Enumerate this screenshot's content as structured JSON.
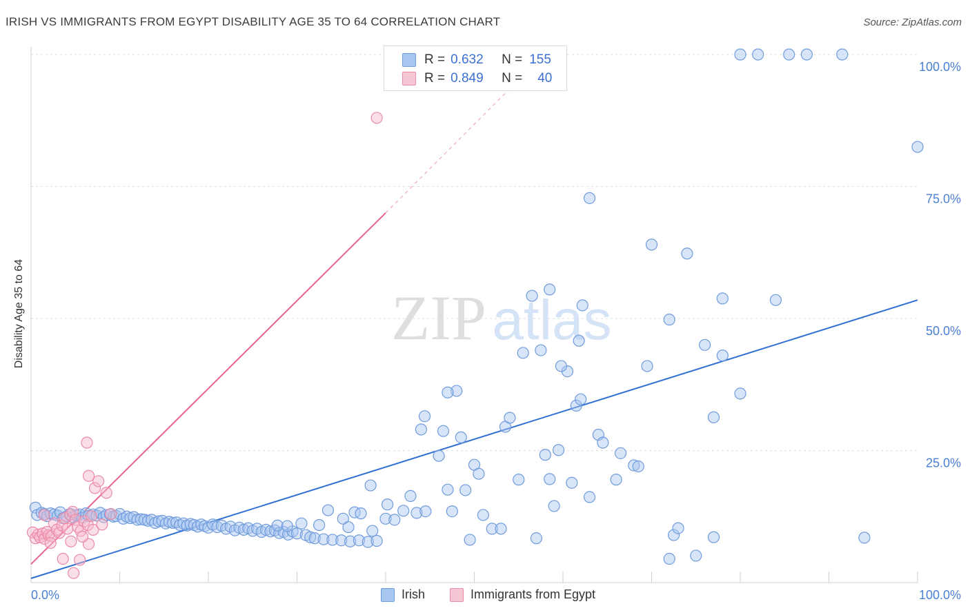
{
  "title": "IRISH VS IMMIGRANTS FROM EGYPT DISABILITY AGE 35 TO 64 CORRELATION CHART",
  "source": "Source: ZipAtlas.com",
  "watermark": {
    "zip": "ZIP",
    "atlas": "atlas"
  },
  "colors": {
    "irish_fill": "#a8c6f0",
    "irish_stroke": "#6f9bdc",
    "irish_line": "#2f6fd3",
    "egypt_fill": "#f6b9cb",
    "egypt_stroke": "#e98aa6",
    "egypt_line": "#e8648e",
    "axis_label": "#4a7fd4"
  },
  "legend": {
    "irish": {
      "r_label": "R =",
      "r_value": "0.632",
      "n_label": "N =",
      "n_value": "155"
    },
    "egypt": {
      "r_label": "R =",
      "r_value": "0.849",
      "n_label": "N =",
      "n_value": "40"
    }
  },
  "series_names": {
    "irish": "Irish",
    "egypt": "Immigrants from Egypt"
  },
  "chart_data": {
    "type": "scatter",
    "title": "IRISH VS IMMIGRANTS FROM EGYPT DISABILITY AGE 35 TO 64 CORRELATION CHART",
    "xlabel": "",
    "ylabel": "Disability Age 35 to 64",
    "xlim": [
      0,
      100
    ],
    "ylim": [
      0,
      100
    ],
    "x_tick_labels": [
      "0.0%",
      "100.0%"
    ],
    "y_tick_labels": [
      "25.0%",
      "50.0%",
      "75.0%",
      "100.0%"
    ],
    "y_gridlines": [
      25,
      50,
      75,
      100
    ],
    "series": [
      {
        "name": "Irish",
        "r": 0.632,
        "n": 155,
        "trend": {
          "x": [
            0,
            100
          ],
          "y": [
            0.8,
            53.5
          ]
        },
        "points": [
          [
            0.5,
            14.2
          ],
          [
            0.7,
            12.8
          ],
          [
            1.2,
            13.2
          ],
          [
            1.5,
            13.0
          ],
          [
            1.8,
            12.6
          ],
          [
            2.2,
            13.1
          ],
          [
            2.6,
            12.9
          ],
          [
            3.0,
            12.7
          ],
          [
            3.3,
            13.3
          ],
          [
            3.6,
            12.2
          ],
          [
            4.0,
            12.5
          ],
          [
            4.4,
            13.0
          ],
          [
            4.7,
            12.4
          ],
          [
            5.1,
            12.8
          ],
          [
            5.5,
            12.9
          ],
          [
            5.8,
            12.3
          ],
          [
            6.2,
            13.1
          ],
          [
            6.5,
            12.6
          ],
          [
            7.0,
            12.9
          ],
          [
            7.4,
            12.7
          ],
          [
            7.8,
            13.2
          ],
          [
            8.2,
            12.4
          ],
          [
            8.5,
            12.8
          ],
          [
            8.9,
            12.9
          ],
          [
            9.3,
            12.5
          ],
          [
            9.6,
            12.6
          ],
          [
            10.0,
            13.0
          ],
          [
            10.4,
            12.1
          ],
          [
            10.8,
            12.5
          ],
          [
            11.2,
            12.2
          ],
          [
            11.6,
            12.4
          ],
          [
            12.0,
            11.9
          ],
          [
            12.4,
            12.0
          ],
          [
            12.8,
            11.9
          ],
          [
            13.2,
            11.7
          ],
          [
            13.6,
            11.9
          ],
          [
            14.0,
            11.3
          ],
          [
            14.4,
            11.6
          ],
          [
            14.8,
            11.7
          ],
          [
            15.2,
            11.2
          ],
          [
            15.6,
            11.5
          ],
          [
            16.0,
            11.3
          ],
          [
            16.4,
            11.4
          ],
          [
            16.8,
            10.9
          ],
          [
            17.2,
            11.2
          ],
          [
            17.6,
            10.8
          ],
          [
            18.0,
            11.1
          ],
          [
            18.4,
            10.9
          ],
          [
            18.8,
            10.6
          ],
          [
            19.2,
            11.0
          ],
          [
            19.6,
            10.7
          ],
          [
            20.0,
            10.4
          ],
          [
            20.5,
            11.0
          ],
          [
            21.0,
            10.5
          ],
          [
            21.5,
            10.8
          ],
          [
            22.0,
            10.2
          ],
          [
            22.5,
            10.6
          ],
          [
            23.0,
            9.9
          ],
          [
            23.5,
            10.4
          ],
          [
            24.0,
            10.0
          ],
          [
            24.5,
            10.3
          ],
          [
            25.0,
            9.8
          ],
          [
            25.5,
            10.2
          ],
          [
            26.0,
            9.6
          ],
          [
            26.5,
            10.0
          ],
          [
            27.0,
            9.7
          ],
          [
            27.5,
            9.9
          ],
          [
            28.0,
            9.4
          ],
          [
            28.5,
            9.6
          ],
          [
            29.0,
            9.1
          ],
          [
            29.5,
            9.7
          ],
          [
            30.0,
            9.3
          ],
          [
            31.0,
            9.0
          ],
          [
            31.5,
            8.6
          ],
          [
            32.0,
            8.4
          ],
          [
            33.0,
            8.2
          ],
          [
            34.0,
            8.1
          ],
          [
            35.0,
            8.0
          ],
          [
            36.0,
            7.8
          ],
          [
            37.0,
            8.0
          ],
          [
            38.0,
            7.7
          ],
          [
            39.0,
            7.9
          ],
          [
            27.8,
            10.8
          ],
          [
            28.9,
            10.7
          ],
          [
            30.5,
            11.2
          ],
          [
            32.5,
            10.9
          ],
          [
            33.5,
            13.7
          ],
          [
            35.2,
            12.1
          ],
          [
            35.8,
            10.5
          ],
          [
            36.5,
            13.3
          ],
          [
            37.2,
            13.1
          ],
          [
            38.5,
            9.8
          ],
          [
            40.0,
            12.1
          ],
          [
            41.0,
            11.9
          ],
          [
            42.0,
            13.6
          ],
          [
            42.8,
            16.4
          ],
          [
            43.5,
            13.2
          ],
          [
            44.5,
            13.5
          ],
          [
            40.2,
            14.8
          ],
          [
            38.3,
            18.4
          ],
          [
            44.0,
            29.0
          ],
          [
            44.4,
            31.5
          ],
          [
            46.5,
            28.7
          ],
          [
            46.0,
            24.0
          ],
          [
            47.0,
            17.6
          ],
          [
            47.5,
            13.5
          ],
          [
            49.0,
            17.5
          ],
          [
            48.5,
            27.5
          ],
          [
            48.0,
            36.3
          ],
          [
            50.0,
            22.3
          ],
          [
            49.5,
            8.1
          ],
          [
            50.5,
            20.6
          ],
          [
            51.0,
            12.8
          ],
          [
            52.0,
            10.2
          ],
          [
            53.0,
            10.2
          ],
          [
            53.5,
            29.5
          ],
          [
            54.0,
            31.2
          ],
          [
            55.0,
            19.5
          ],
          [
            57.0,
            8.4
          ],
          [
            58.0,
            24.2
          ],
          [
            58.5,
            19.6
          ],
          [
            59.0,
            14.5
          ],
          [
            59.5,
            25.1
          ],
          [
            60.5,
            40.0
          ],
          [
            61.0,
            18.9
          ],
          [
            61.5,
            33.5
          ],
          [
            62.0,
            34.7
          ],
          [
            63.0,
            16.2
          ],
          [
            64.0,
            28.0
          ],
          [
            64.5,
            26.5
          ],
          [
            66.0,
            19.5
          ],
          [
            66.5,
            24.5
          ],
          [
            68.0,
            22.2
          ],
          [
            68.5,
            22.0
          ],
          [
            72.0,
            4.5
          ],
          [
            72.5,
            9.0
          ],
          [
            73.0,
            10.3
          ],
          [
            75.0,
            5.1
          ],
          [
            77.0,
            8.6
          ],
          [
            55.5,
            43.5
          ],
          [
            57.5,
            44.0
          ],
          [
            59.8,
            41.0
          ],
          [
            61.8,
            45.8
          ],
          [
            56.5,
            54.3
          ],
          [
            58.5,
            55.5
          ],
          [
            62.2,
            52.5
          ],
          [
            47.0,
            36.0
          ],
          [
            63.0,
            72.8
          ],
          [
            70.0,
            64.0
          ],
          [
            74.0,
            62.3
          ],
          [
            72.0,
            49.8
          ],
          [
            76.0,
            45.0
          ],
          [
            78.0,
            43.0
          ],
          [
            69.5,
            41.0
          ],
          [
            78.0,
            53.8
          ],
          [
            80.0,
            35.8
          ],
          [
            77.0,
            31.3
          ],
          [
            84.0,
            53.5
          ],
          [
            94.0,
            8.5
          ],
          [
            100.0,
            82.5
          ],
          [
            80.0,
            100.0
          ],
          [
            82.0,
            100.0
          ],
          [
            85.5,
            100.0
          ],
          [
            87.5,
            100.0
          ],
          [
            91.5,
            100.0
          ]
        ]
      },
      {
        "name": "Immigrants from Egypt",
        "r": 0.849,
        "n": 40,
        "trend": {
          "x": [
            0,
            40
          ],
          "y": [
            3.5,
            70.0
          ]
        },
        "trend_dashed": {
          "x": [
            40,
            54
          ],
          "y": [
            70.0,
            93.5
          ]
        },
        "points": [
          [
            0.2,
            9.5
          ],
          [
            0.5,
            8.4
          ],
          [
            0.8,
            9.1
          ],
          [
            1.0,
            8.6
          ],
          [
            1.3,
            9.3
          ],
          [
            1.5,
            8.3
          ],
          [
            1.8,
            9.6
          ],
          [
            2.0,
            9.0
          ],
          [
            2.3,
            8.8
          ],
          [
            2.6,
            11.2
          ],
          [
            2.9,
            10.0
          ],
          [
            3.2,
            9.4
          ],
          [
            3.5,
            10.8
          ],
          [
            3.8,
            12.2
          ],
          [
            4.1,
            10.2
          ],
          [
            4.4,
            12.8
          ],
          [
            4.7,
            13.4
          ],
          [
            5.0,
            11.9
          ],
          [
            5.3,
            10.5
          ],
          [
            5.6,
            9.8
          ],
          [
            6.0,
            11.6
          ],
          [
            6.4,
            10.9
          ],
          [
            6.8,
            12.6
          ],
          [
            7.2,
            17.9
          ],
          [
            7.6,
            19.2
          ],
          [
            2.2,
            7.5
          ],
          [
            3.6,
            4.5
          ],
          [
            4.8,
            1.8
          ],
          [
            5.5,
            4.3
          ],
          [
            6.5,
            7.3
          ],
          [
            7.0,
            10.0
          ],
          [
            1.5,
            12.8
          ],
          [
            8.5,
            17.0
          ],
          [
            6.3,
            26.5
          ],
          [
            6.5,
            20.2
          ],
          [
            8.0,
            11.0
          ],
          [
            9.0,
            13.0
          ],
          [
            4.5,
            7.8
          ],
          [
            5.8,
            8.7
          ],
          [
            39.0,
            88.0
          ]
        ]
      }
    ]
  }
}
